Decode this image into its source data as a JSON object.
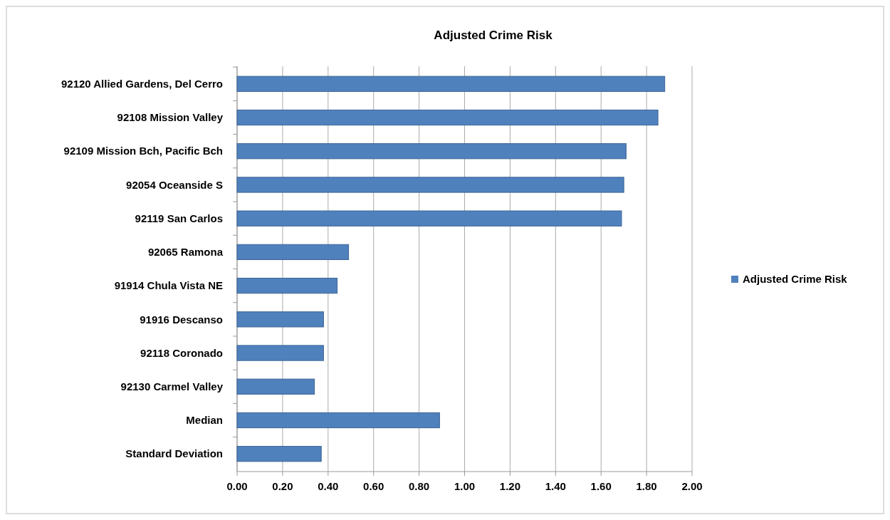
{
  "chart_data": {
    "type": "bar",
    "orientation": "horizontal",
    "title": "Adjusted Crime Risk",
    "categories": [
      "92120 Allied Gardens, Del Cerro",
      "92108 Mission Valley",
      "92109 Mission Bch, Pacific Bch",
      "92054 Oceanside S",
      "92119 San Carlos",
      "92065 Ramona",
      "91914 Chula Vista NE",
      "91916 Descanso",
      "92118 Coronado",
      "92130 Carmel Valley",
      "Median",
      "Standard Deviation"
    ],
    "series": [
      {
        "name": "Adjusted Crime Risk",
        "color": "#4f81bd",
        "values": [
          1.88,
          1.85,
          1.71,
          1.7,
          1.69,
          0.49,
          0.44,
          0.38,
          0.38,
          0.34,
          0.89,
          0.37
        ]
      }
    ],
    "xlim": [
      0,
      2
    ],
    "xticks": [
      {
        "value": 0,
        "label": "0.00"
      },
      {
        "value": 0.2,
        "label": "0.20"
      },
      {
        "value": 0.4,
        "label": "0.40"
      },
      {
        "value": 0.6,
        "label": "0.60"
      },
      {
        "value": 0.8,
        "label": "0.80"
      },
      {
        "value": 1,
        "label": "1.00"
      },
      {
        "value": 1.2,
        "label": "1.20"
      },
      {
        "value": 1.4,
        "label": "1.40"
      },
      {
        "value": 1.6,
        "label": "1.60"
      },
      {
        "value": 1.8,
        "label": "1.80"
      },
      {
        "value": 2,
        "label": "2.00"
      }
    ],
    "grid": "x",
    "legend": "right"
  }
}
